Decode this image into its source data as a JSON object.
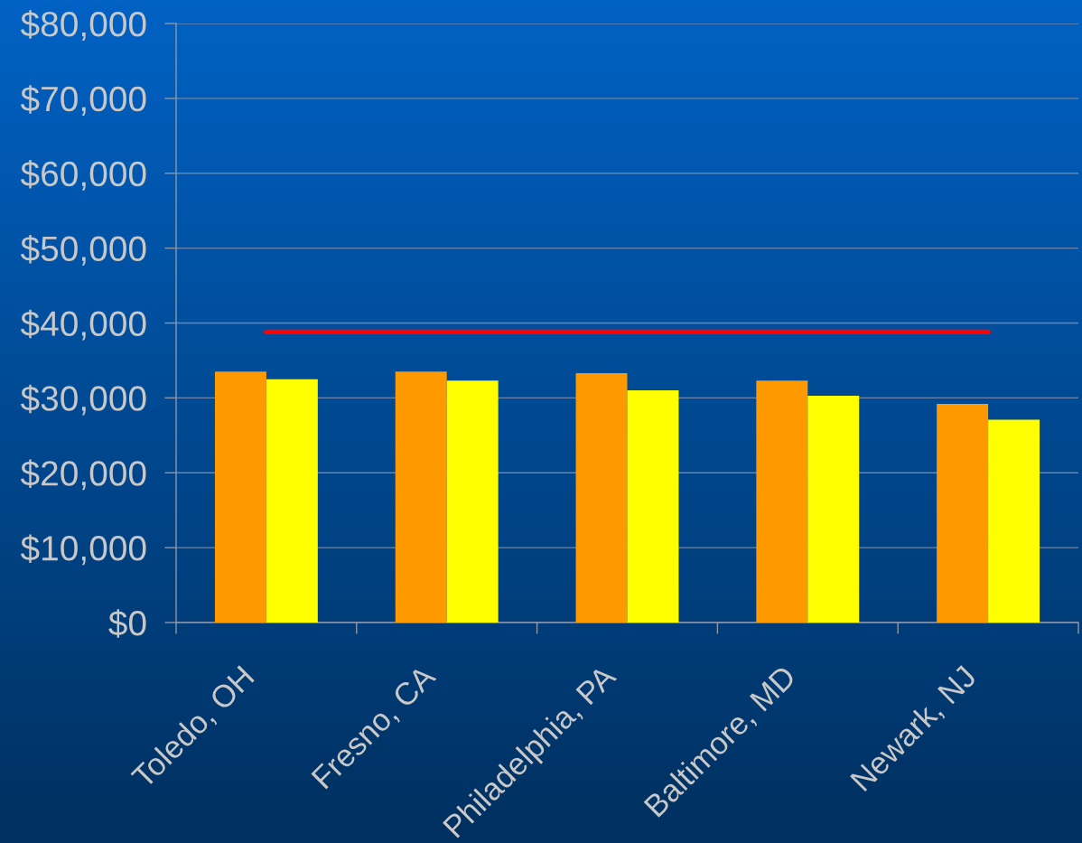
{
  "chart_data": {
    "type": "bar",
    "categories": [
      "Toledo, OH",
      "Fresno, CA",
      "Philadelphia, PA",
      "Baltimore, MD",
      "Newark, NJ"
    ],
    "series": [
      {
        "color": "#ff9900",
        "values": [
          33500,
          33500,
          33300,
          32300,
          29200
        ]
      },
      {
        "color": "#ffff00",
        "values": [
          32500,
          32300,
          31000,
          30300,
          27100
        ]
      },
      {
        "type": "line",
        "color": "#ff0000",
        "values": [
          38800,
          38800,
          38800,
          38800,
          38800
        ]
      }
    ],
    "ylim": [
      0,
      80000
    ],
    "yticks": [
      {
        "value": 0,
        "label": "$0"
      },
      {
        "value": 10000,
        "label": "$10,000"
      },
      {
        "value": 20000,
        "label": "$20,000"
      },
      {
        "value": 30000,
        "label": "$30,000"
      },
      {
        "value": 40000,
        "label": "$40,000"
      },
      {
        "value": 50000,
        "label": "$50,000"
      },
      {
        "value": 60000,
        "label": "$60,000"
      },
      {
        "value": 70000,
        "label": "$70,000"
      },
      {
        "value": 80000,
        "label": "$80,000"
      }
    ],
    "grid": "y",
    "line_style": "solid"
  }
}
